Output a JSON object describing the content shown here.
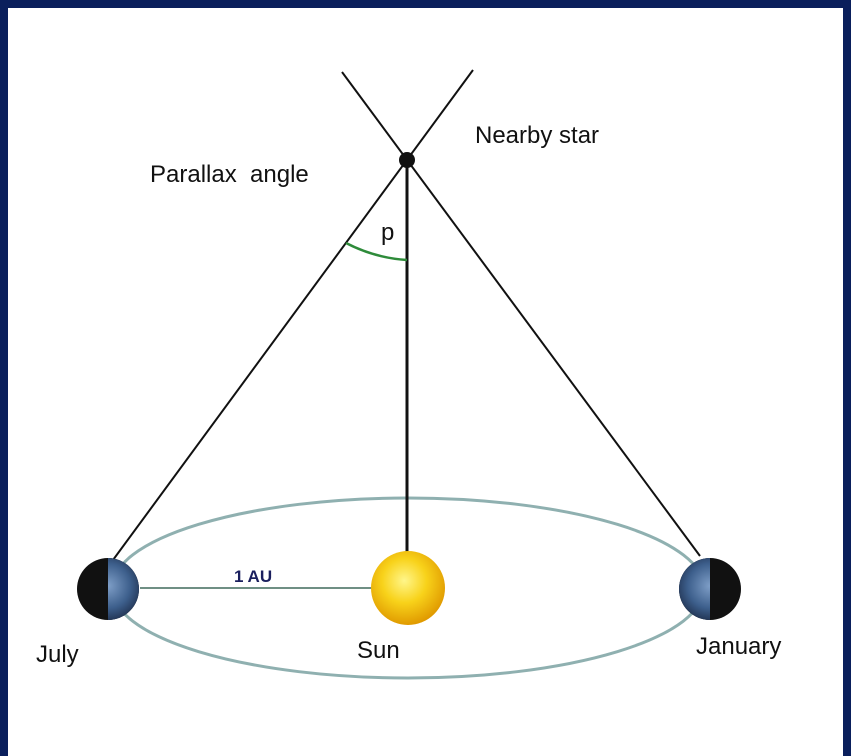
{
  "star": {
    "label": "Nearby star"
  },
  "angle": {
    "label": "Parallax  angle",
    "symbol": "p"
  },
  "distance": {
    "label": "1 AU"
  },
  "july": {
    "label": "July"
  },
  "sun": {
    "label": "Sun"
  },
  "january": {
    "label": "January"
  }
}
